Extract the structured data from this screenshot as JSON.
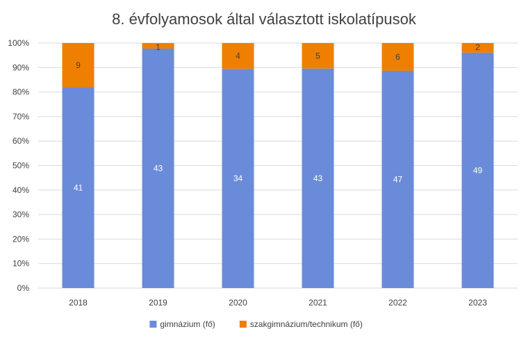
{
  "chart_data": {
    "type": "bar",
    "stacked": true,
    "normalized": true,
    "title": "8. évfolyamosok által választott iskolatípusok",
    "categories": [
      "2018",
      "2019",
      "2020",
      "2021",
      "2022",
      "2023"
    ],
    "series": [
      {
        "name": "gimnázium (fő)",
        "values": [
          41,
          43,
          34,
          43,
          47,
          49
        ],
        "color": "#6a8bd9"
      },
      {
        "name": "szakgimnázium/technikum (fő)",
        "values": [
          9,
          1,
          4,
          5,
          6,
          2
        ],
        "color": "#ef7f00"
      }
    ],
    "y_ticks": [
      "0%",
      "10%",
      "20%",
      "30%",
      "40%",
      "50%",
      "60%",
      "70%",
      "80%",
      "90%",
      "100%"
    ],
    "ylim": [
      0,
      100
    ],
    "grid": true,
    "legend_position": "bottom",
    "label_colors": {
      "inside_bottom": "#ffffff",
      "inside_top": "#404040"
    }
  }
}
